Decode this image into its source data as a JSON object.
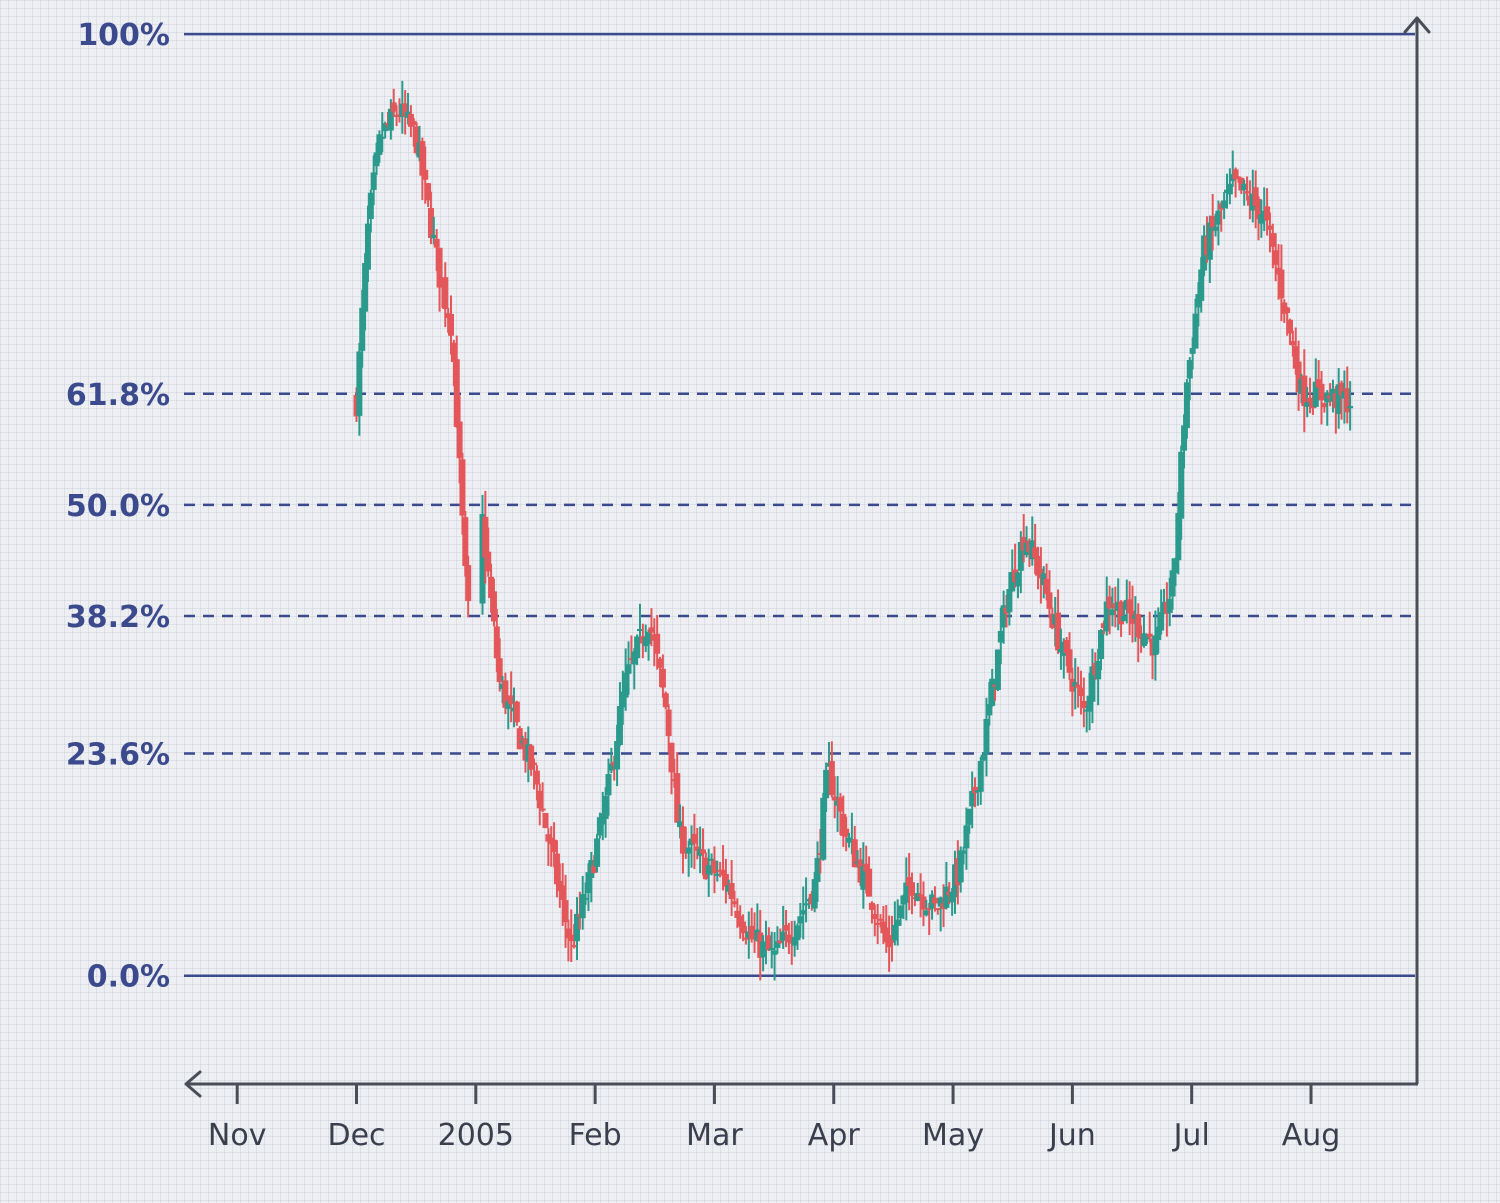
{
  "chart_data": {
    "type": "candlestick",
    "x_ticks": [
      "Nov",
      "Dec",
      "2005",
      "Feb",
      "Mar",
      "Apr",
      "May",
      "Jun",
      "Jul",
      "Aug"
    ],
    "fib_levels": [
      {
        "label": "100%",
        "value": 100,
        "style": "solid"
      },
      {
        "label": "61.8%",
        "value": 61.8,
        "style": "dashed"
      },
      {
        "label": "50.0%",
        "value": 50.0,
        "style": "dashed"
      },
      {
        "label": "38.2%",
        "value": 38.2,
        "style": "dashed"
      },
      {
        "label": "23.6%",
        "value": 23.6,
        "style": "dashed"
      },
      {
        "label": "0.0%",
        "value": 0,
        "style": "solid"
      }
    ],
    "ylim": [
      -11.5,
      101.5
    ],
    "xlim": [
      -0.01,
      9.88
    ],
    "price_path": [
      [
        1.0,
        61
      ],
      [
        1.1,
        80
      ],
      [
        1.2,
        89
      ],
      [
        1.35,
        92
      ],
      [
        1.5,
        89
      ],
      [
        1.7,
        74
      ],
      [
        1.8,
        69
      ],
      [
        1.93,
        38
      ],
      [
        2.05,
        49
      ],
      [
        2.2,
        31
      ],
      [
        2.35,
        26
      ],
      [
        2.5,
        21
      ],
      [
        2.65,
        12
      ],
      [
        2.8,
        3
      ],
      [
        2.95,
        10
      ],
      [
        3.1,
        19
      ],
      [
        3.25,
        31
      ],
      [
        3.45,
        38
      ],
      [
        3.6,
        28
      ],
      [
        3.7,
        15
      ],
      [
        3.9,
        12
      ],
      [
        4.1,
        10
      ],
      [
        4.3,
        4
      ],
      [
        4.5,
        2
      ],
      [
        4.7,
        6
      ],
      [
        4.85,
        10
      ],
      [
        4.95,
        22
      ],
      [
        5.1,
        15
      ],
      [
        5.3,
        9
      ],
      [
        5.45,
        3
      ],
      [
        5.65,
        10
      ],
      [
        5.85,
        7
      ],
      [
        6.05,
        11
      ],
      [
        6.25,
        24
      ],
      [
        6.45,
        40
      ],
      [
        6.6,
        47
      ],
      [
        6.75,
        42
      ],
      [
        6.9,
        35
      ],
      [
        7.1,
        28
      ],
      [
        7.3,
        40
      ],
      [
        7.5,
        38
      ],
      [
        7.7,
        35
      ],
      [
        7.85,
        42
      ],
      [
        7.95,
        62
      ],
      [
        8.1,
        77
      ],
      [
        8.35,
        84
      ],
      [
        8.6,
        81
      ],
      [
        8.75,
        73
      ],
      [
        8.92,
        62
      ],
      [
        9.35,
        61
      ]
    ],
    "gap": [
      1.95,
      2.05
    ],
    "colors": {
      "up": "#2b9a8c",
      "down": "#e3565a",
      "levels": "#3b4a8c",
      "axis": "#4a4d57"
    }
  }
}
